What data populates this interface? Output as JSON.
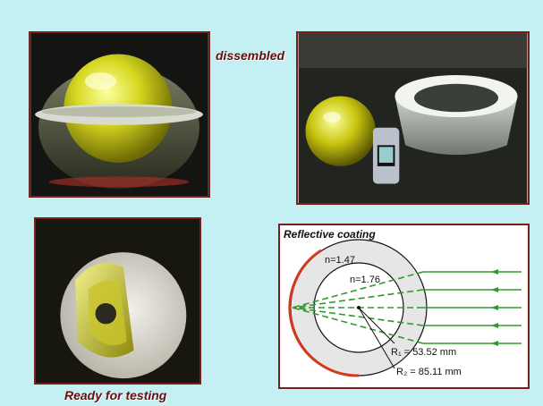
{
  "captions": {
    "disassembled": "dissembled",
    "ready": "Ready for testing"
  },
  "photos": {
    "assembled": "Assembled ball lens with glass shell",
    "disassembled": "Inner ball, phone for scale, and outer shell",
    "ready": "Lens mounted in white housing"
  },
  "diagram": {
    "title": "Reflective coating",
    "n_outer": "n=1.47",
    "n_inner": "n=1.76",
    "r1": "R₁ = 53.52 mm",
    "r2": "R₂ = 85.11 mm",
    "colors": {
      "coating": "#d23a1e",
      "rays": "#2e9a2e",
      "border": "#7a1e1e",
      "background": "#c4f0f4",
      "caption": "#6b0d0d"
    }
  }
}
